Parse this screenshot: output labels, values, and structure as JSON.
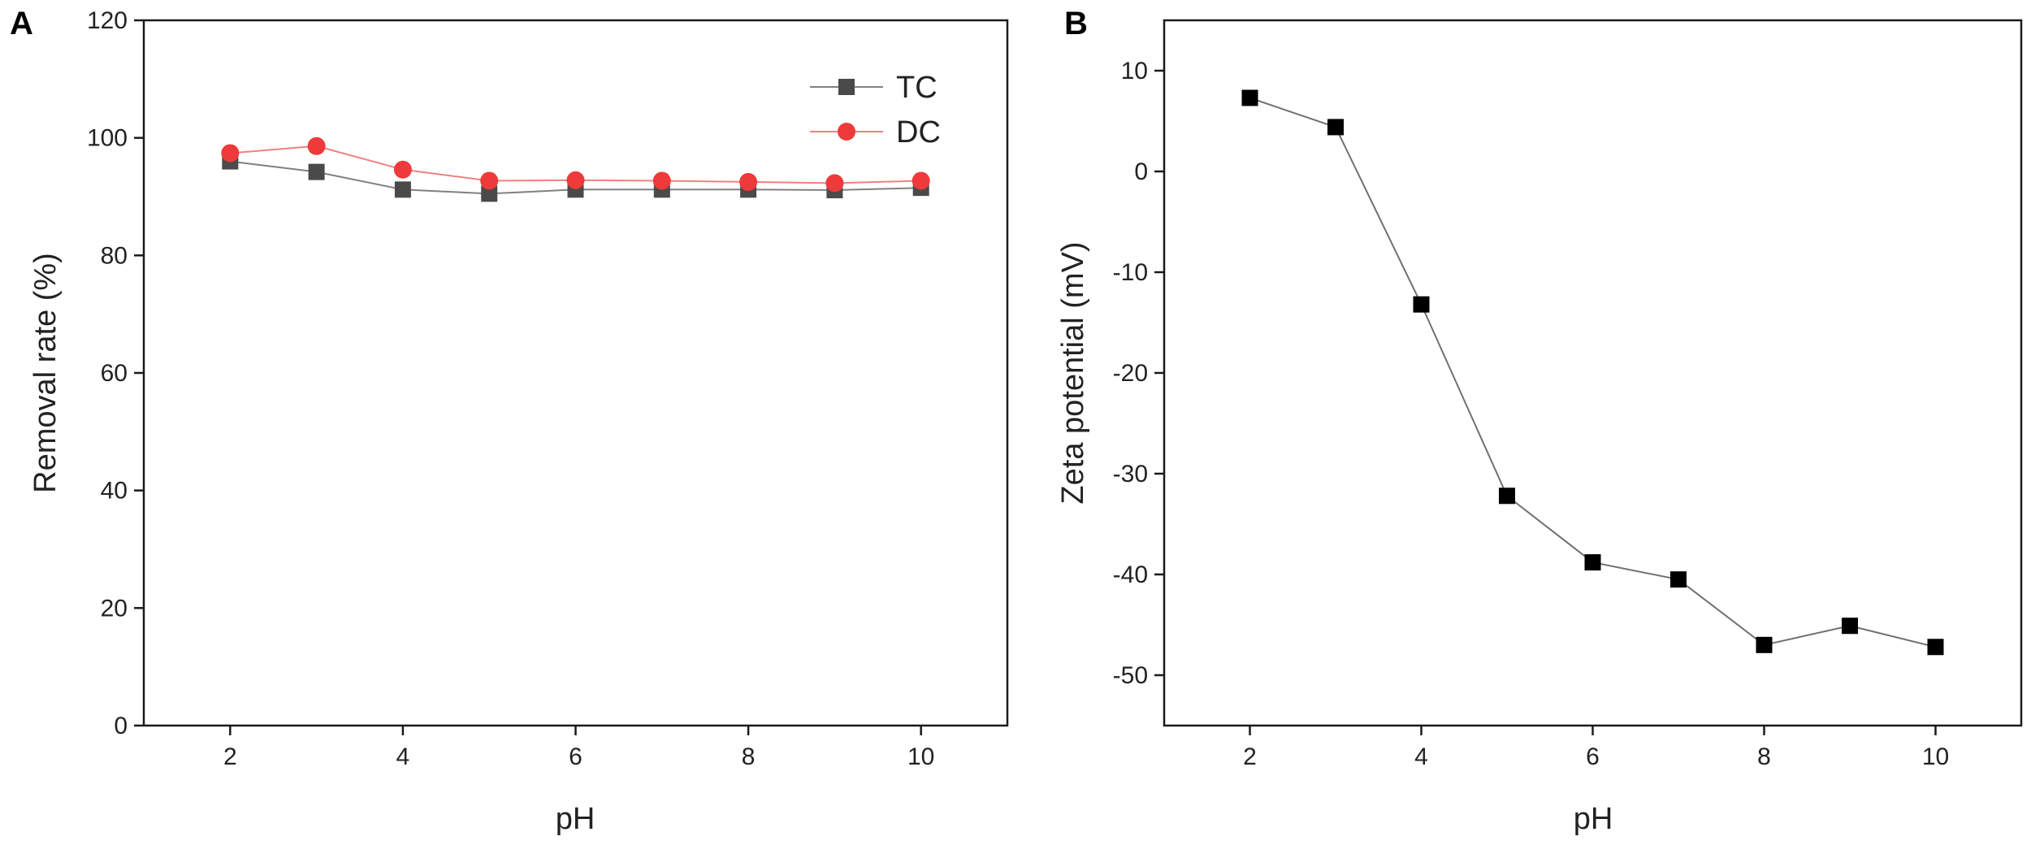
{
  "chart_data": [
    {
      "panel": "A",
      "type": "line",
      "title": "",
      "xlabel": "pH",
      "ylabel": "Removal rate (%)",
      "xlim": [
        1,
        11
      ],
      "ylim": [
        0,
        120
      ],
      "xticks": [
        2,
        4,
        6,
        8,
        10
      ],
      "yticks": [
        0,
        20,
        40,
        60,
        80,
        100,
        120
      ],
      "grid": false,
      "legend_position": "top-right",
      "x": [
        2,
        3,
        4,
        5,
        6,
        7,
        8,
        9,
        10
      ],
      "series": [
        {
          "name": "TC",
          "marker": "square",
          "color": "#4a4a4a",
          "line_color": "#808080",
          "values": [
            96,
            94.2,
            91.2,
            90.5,
            91.2,
            91.2,
            91.2,
            91.1,
            91.5
          ]
        },
        {
          "name": "DC",
          "marker": "circle",
          "color": "#ee3a3a",
          "line_color": "#f08080",
          "values": [
            97.4,
            98.6,
            94.6,
            92.7,
            92.8,
            92.7,
            92.5,
            92.3,
            92.7
          ]
        }
      ]
    },
    {
      "panel": "B",
      "type": "line",
      "title": "",
      "xlabel": "pH",
      "ylabel": "Zeta potential (mV)",
      "xlim": [
        1,
        11
      ],
      "ylim": [
        -55,
        15
      ],
      "xticks": [
        2,
        4,
        6,
        8,
        10
      ],
      "yticks": [
        10,
        0,
        -10,
        -20,
        -30,
        -40,
        -50
      ],
      "grid": false,
      "x": [
        2,
        3,
        4,
        5,
        6,
        7,
        8,
        9,
        10
      ],
      "series": [
        {
          "name": "Zeta potential",
          "marker": "square",
          "color": "#000000",
          "line_color": "#707070",
          "values": [
            7.3,
            4.4,
            -13.2,
            -32.2,
            -38.8,
            -40.5,
            -47,
            -45.1,
            -47.2
          ]
        }
      ]
    }
  ]
}
